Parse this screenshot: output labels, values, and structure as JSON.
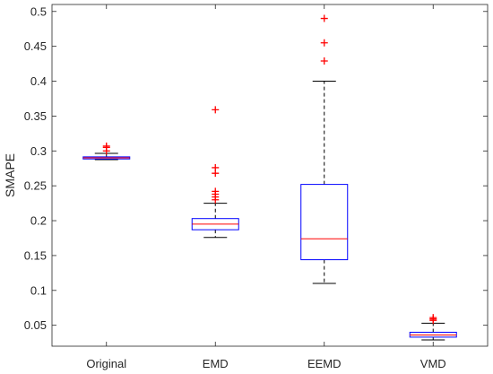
{
  "chart_data": {
    "type": "box",
    "title": "",
    "xlabel": "",
    "ylabel": "SMAPE",
    "ylim": [
      0.02,
      0.51
    ],
    "yticks": [
      0.05,
      0.1,
      0.15,
      0.2,
      0.25,
      0.3,
      0.35,
      0.4,
      0.45,
      0.5
    ],
    "ytick_labels": [
      "0.05",
      "0.1",
      "0.15",
      "0.2",
      "0.25",
      "0.3",
      "0.35",
      "0.4",
      "0.45",
      "0.5"
    ],
    "categories": [
      "Original",
      "EMD",
      "EEMD",
      "VMD"
    ],
    "grid": false,
    "colors": {
      "box": "#0000ff",
      "median": "#ff0000",
      "whisker": "#000000",
      "outlier": "#ff0000",
      "axis": "#262626"
    },
    "boxes": [
      {
        "category": "Original",
        "whisker_low": 0.2875,
        "q1": 0.2885,
        "median": 0.29,
        "q3": 0.2915,
        "whisker_high": 0.2965,
        "outliers": [
          0.3,
          0.305,
          0.307
        ]
      },
      {
        "category": "EMD",
        "whisker_low": 0.176,
        "q1": 0.187,
        "median": 0.195,
        "q3": 0.203,
        "whisker_high": 0.225,
        "outliers": [
          0.23,
          0.234,
          0.238,
          0.242,
          0.268,
          0.276,
          0.359
        ]
      },
      {
        "category": "EEMD",
        "whisker_low": 0.11,
        "q1": 0.144,
        "median": 0.174,
        "q3": 0.252,
        "whisker_high": 0.4,
        "outliers": [
          0.429,
          0.455,
          0.49
        ]
      },
      {
        "category": "VMD",
        "whisker_low": 0.029,
        "q1": 0.033,
        "median": 0.036,
        "q3": 0.04,
        "whisker_high": 0.053,
        "outliers": [
          0.057,
          0.059,
          0.061
        ]
      }
    ]
  }
}
